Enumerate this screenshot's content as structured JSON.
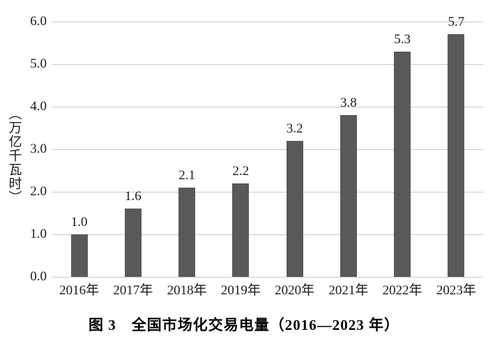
{
  "figure": {
    "caption": "图 3　全国市场化交易电量（2016—2023 年）"
  },
  "chart_data": {
    "type": "bar",
    "title": "",
    "categories": [
      "2016年",
      "2017年",
      "2018年",
      "2019年",
      "2020年",
      "2021年",
      "2022年",
      "2023年"
    ],
    "values": [
      1.0,
      1.6,
      2.1,
      2.2,
      3.2,
      3.8,
      5.3,
      5.7
    ],
    "value_labels": [
      "1.0",
      "1.6",
      "2.1",
      "2.2",
      "3.2",
      "3.8",
      "5.3",
      "5.7"
    ],
    "xlabel": "",
    "ylabel": "（万亿千瓦时）",
    "ylim": [
      0,
      6
    ],
    "y_ticks": [
      "0.0",
      "1.0",
      "2.0",
      "3.0",
      "4.0",
      "5.0",
      "6.0"
    ],
    "grid": "horizontal gridlines only, no axis lines",
    "legend": "none",
    "bar_color": "#595959",
    "gridline_color": "#c9c9c9",
    "label_color": "#1a1a1a"
  }
}
